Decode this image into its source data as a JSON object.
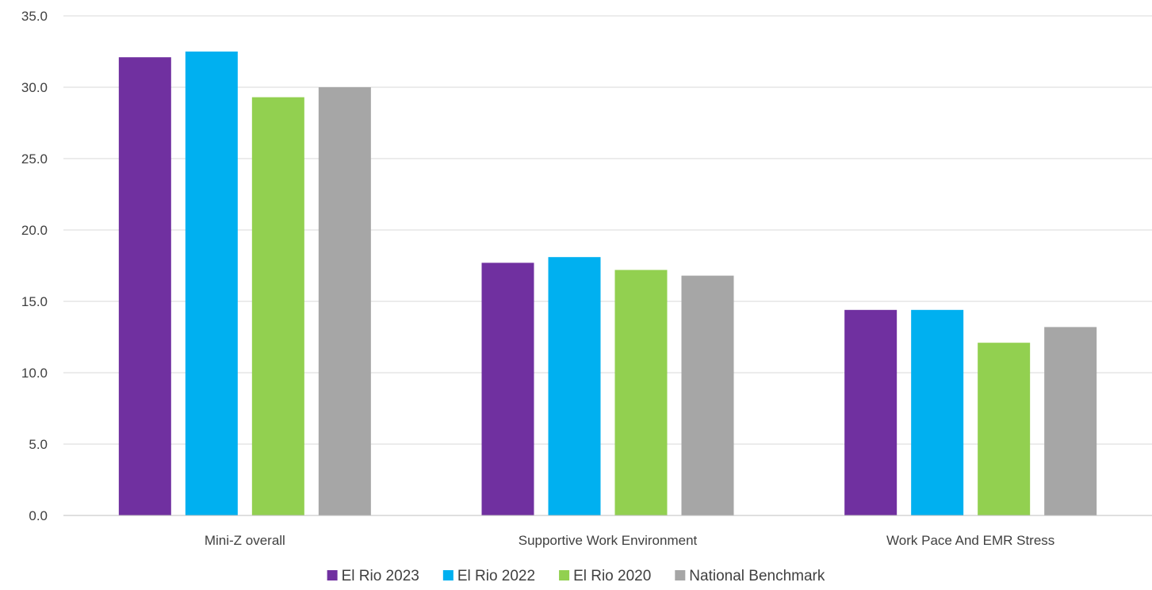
{
  "chart_data": {
    "type": "bar",
    "title": "",
    "xlabel": "",
    "ylabel": "",
    "ylim": [
      0,
      35
    ],
    "ytick_step": 5,
    "ytick_format": "0.0",
    "grid": true,
    "legend_position": "bottom",
    "categories": [
      "Mini-Z overall",
      "Supportive Work Environment",
      "Work Pace And EMR Stress"
    ],
    "series": [
      {
        "name": "El Rio 2023",
        "color": "#7030a0",
        "values": [
          32.1,
          17.7,
          14.4
        ]
      },
      {
        "name": "El Rio 2022",
        "color": "#00b0f0",
        "values": [
          32.5,
          18.1,
          14.4
        ]
      },
      {
        "name": "El Rio 2020",
        "color": "#92d050",
        "values": [
          29.3,
          17.2,
          12.1
        ]
      },
      {
        "name": "National Benchmark",
        "color": "#a6a6a6",
        "values": [
          30.0,
          16.8,
          13.2
        ]
      }
    ]
  }
}
